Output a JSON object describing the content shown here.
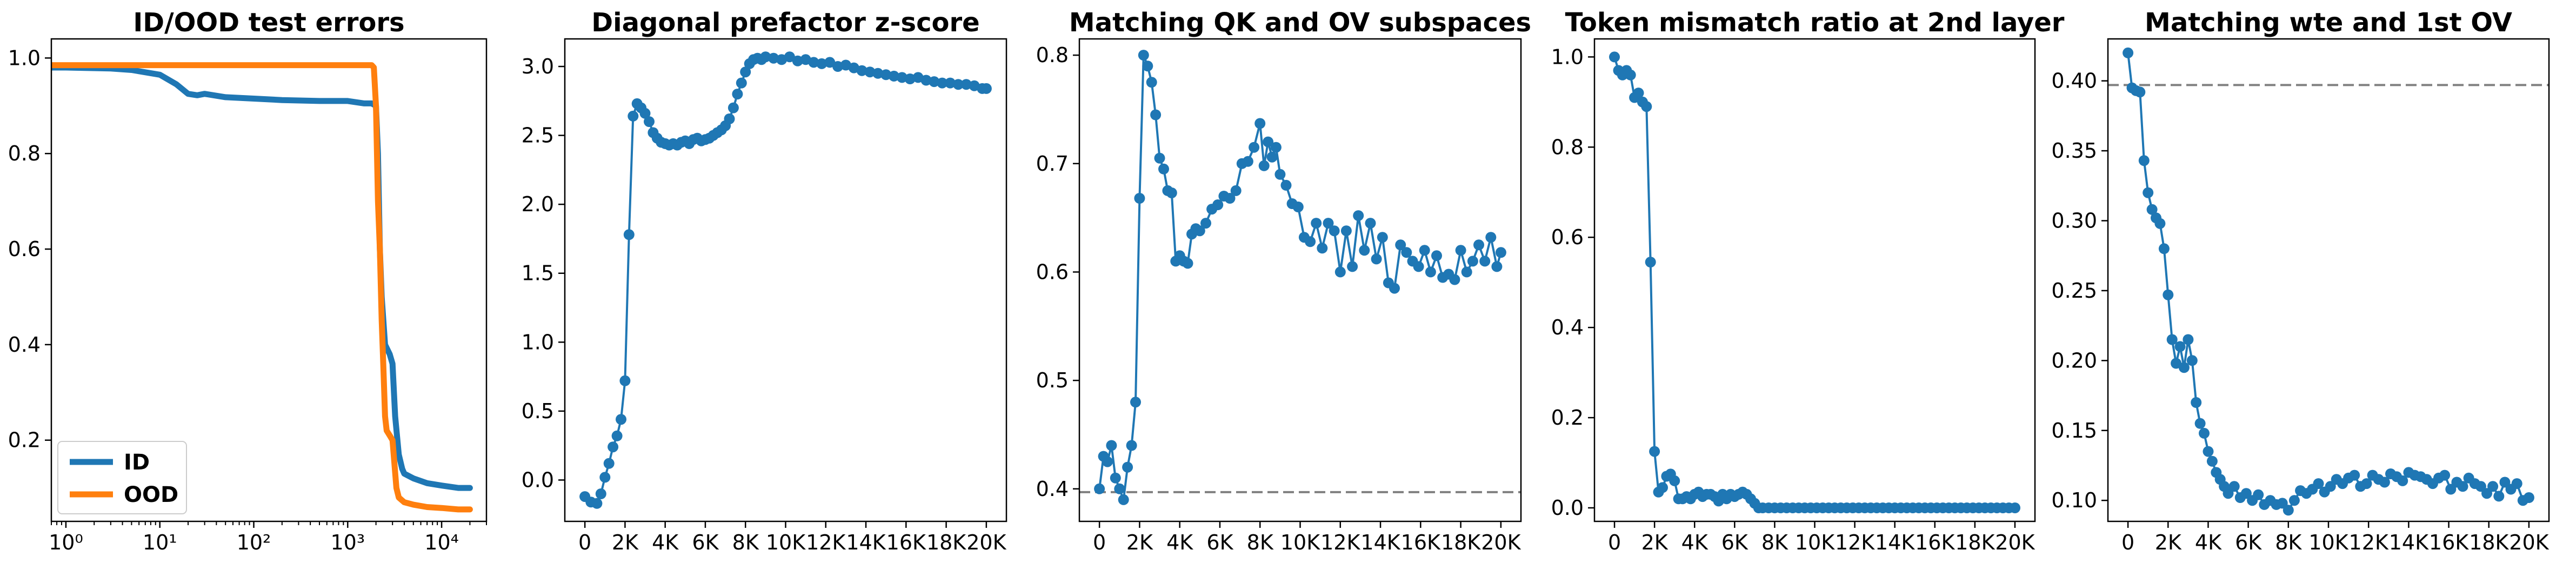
{
  "colors": {
    "blue": "#1f77b4",
    "orange": "#ff7f0e",
    "reference": "#808080"
  },
  "chart_data": [
    {
      "type": "line",
      "title": "ID/OOD test errors",
      "xscale": "log",
      "xlim": [
        0.7,
        30000
      ],
      "ylim": [
        0.03,
        1.04
      ],
      "xticks": [
        1,
        10,
        100,
        1000,
        10000
      ],
      "xtick_labels": [
        "10⁰",
        "10¹",
        "10²",
        "10³",
        "10⁴"
      ],
      "yticks": [
        0.2,
        0.4,
        0.6,
        0.8,
        1.0
      ],
      "ytick_labels": [
        "0.2",
        "0.4",
        "0.6",
        "0.8",
        "1.0"
      ],
      "legend": {
        "position": "lower-left",
        "entries": [
          "ID",
          "OOD"
        ]
      },
      "series": [
        {
          "name": "ID",
          "color": "#1f77b4",
          "x": [
            0.7,
            1,
            3,
            5,
            10,
            15,
            20,
            25,
            30,
            50,
            100,
            200,
            500,
            1000,
            1500,
            1800,
            2000,
            2100,
            2200,
            2300,
            2500,
            2800,
            3000,
            3200,
            3500,
            3800,
            4000,
            5000,
            7000,
            10000,
            15000,
            20000
          ],
          "y": [
            0.98,
            0.98,
            0.978,
            0.975,
            0.965,
            0.945,
            0.925,
            0.922,
            0.925,
            0.918,
            0.915,
            0.912,
            0.91,
            0.91,
            0.905,
            0.905,
            0.9,
            0.8,
            0.6,
            0.5,
            0.4,
            0.38,
            0.36,
            0.25,
            0.17,
            0.14,
            0.13,
            0.12,
            0.11,
            0.105,
            0.1,
            0.1
          ]
        },
        {
          "name": "OOD",
          "color": "#ff7f0e",
          "x": [
            0.7,
            1,
            10,
            100,
            1000,
            1500,
            1800,
            1900,
            2000,
            2100,
            2200,
            2300,
            2400,
            2500,
            2600,
            2800,
            3000,
            3300,
            3500,
            4000,
            5000,
            7000,
            10000,
            15000,
            20000
          ],
          "y": [
            0.985,
            0.985,
            0.985,
            0.985,
            0.985,
            0.985,
            0.985,
            0.98,
            0.9,
            0.7,
            0.6,
            0.45,
            0.35,
            0.25,
            0.22,
            0.21,
            0.2,
            0.1,
            0.08,
            0.07,
            0.065,
            0.06,
            0.058,
            0.055,
            0.055
          ]
        }
      ]
    },
    {
      "type": "line",
      "title": "Diagonal prefactor z-score",
      "xlim": [
        -1000,
        21000
      ],
      "ylim": [
        -0.3,
        3.2
      ],
      "xticks": [
        0,
        2000,
        4000,
        6000,
        8000,
        10000,
        12000,
        14000,
        16000,
        18000,
        20000
      ],
      "xtick_labels": [
        "0",
        "2K",
        "4K",
        "6K",
        "8K",
        "10K",
        "12K",
        "14K",
        "16K",
        "18K",
        "20K"
      ],
      "yticks": [
        0.0,
        0.5,
        1.0,
        1.5,
        2.0,
        2.5,
        3.0
      ],
      "ytick_labels": [
        "0.0",
        "0.5",
        "1.0",
        "1.5",
        "2.0",
        "2.5",
        "3.0"
      ],
      "series": [
        {
          "color": "#1f77b4",
          "markers": true,
          "x": [
            0,
            300,
            600,
            800,
            1000,
            1200,
            1400,
            1600,
            1800,
            2000,
            2200,
            2400,
            2600,
            2800,
            3000,
            3200,
            3400,
            3600,
            3800,
            4000,
            4200,
            4400,
            4600,
            4800,
            5000,
            5200,
            5400,
            5600,
            5800,
            6000,
            6200,
            6400,
            6600,
            6800,
            7000,
            7200,
            7400,
            7600,
            7800,
            8000,
            8200,
            8400,
            8600,
            8800,
            9000,
            9400,
            9800,
            10200,
            10600,
            11000,
            11400,
            11800,
            12200,
            12600,
            13000,
            13400,
            13800,
            14200,
            14600,
            15000,
            15400,
            15800,
            16200,
            16600,
            17000,
            17400,
            17800,
            18200,
            18600,
            19000,
            19400,
            19800,
            20000
          ],
          "y": [
            -0.12,
            -0.16,
            -0.17,
            -0.1,
            0.02,
            0.12,
            0.24,
            0.32,
            0.44,
            0.72,
            1.78,
            2.64,
            2.73,
            2.7,
            2.66,
            2.6,
            2.52,
            2.48,
            2.45,
            2.44,
            2.43,
            2.44,
            2.43,
            2.45,
            2.46,
            2.44,
            2.47,
            2.48,
            2.46,
            2.47,
            2.48,
            2.5,
            2.52,
            2.54,
            2.57,
            2.62,
            2.7,
            2.8,
            2.88,
            2.96,
            3.02,
            3.05,
            3.06,
            3.05,
            3.07,
            3.06,
            3.05,
            3.07,
            3.04,
            3.05,
            3.03,
            3.02,
            3.03,
            3.0,
            3.01,
            2.99,
            2.97,
            2.96,
            2.95,
            2.94,
            2.93,
            2.92,
            2.91,
            2.92,
            2.9,
            2.89,
            2.88,
            2.88,
            2.87,
            2.87,
            2.86,
            2.84,
            2.84
          ]
        }
      ]
    },
    {
      "type": "line",
      "title": "Matching QK and OV subspaces",
      "xlim": [
        -1000,
        21000
      ],
      "ylim": [
        0.37,
        0.815
      ],
      "xticks": [
        0,
        2000,
        4000,
        6000,
        8000,
        10000,
        12000,
        14000,
        16000,
        18000,
        20000
      ],
      "xtick_labels": [
        "0",
        "2K",
        "4K",
        "6K",
        "8K",
        "10K",
        "12K",
        "14K",
        "16K",
        "18K",
        "20K"
      ],
      "yticks": [
        0.4,
        0.5,
        0.6,
        0.7,
        0.8
      ],
      "ytick_labels": [
        "0.4",
        "0.5",
        "0.6",
        "0.7",
        "0.8"
      ],
      "hline": 0.397,
      "series": [
        {
          "color": "#1f77b4",
          "markers": true,
          "x": [
            0,
            200,
            400,
            600,
            800,
            1000,
            1200,
            1400,
            1600,
            1800,
            2000,
            2200,
            2400,
            2600,
            2800,
            3000,
            3200,
            3400,
            3600,
            3800,
            4000,
            4200,
            4400,
            4600,
            4800,
            5000,
            5300,
            5600,
            5900,
            6200,
            6500,
            6800,
            7100,
            7400,
            7700,
            8000,
            8200,
            8400,
            8600,
            8800,
            9000,
            9300,
            9600,
            9900,
            10200,
            10500,
            10800,
            11100,
            11400,
            11700,
            12000,
            12300,
            12600,
            12900,
            13200,
            13500,
            13800,
            14100,
            14400,
            14700,
            15000,
            15300,
            15600,
            15900,
            16200,
            16500,
            16800,
            17100,
            17400,
            17700,
            18000,
            18300,
            18600,
            18900,
            19200,
            19500,
            19800,
            20000
          ],
          "y": [
            0.4,
            0.43,
            0.425,
            0.44,
            0.41,
            0.4,
            0.39,
            0.42,
            0.44,
            0.48,
            0.668,
            0.8,
            0.79,
            0.775,
            0.745,
            0.705,
            0.695,
            0.675,
            0.673,
            0.61,
            0.615,
            0.61,
            0.608,
            0.635,
            0.64,
            0.638,
            0.645,
            0.658,
            0.662,
            0.67,
            0.668,
            0.675,
            0.7,
            0.702,
            0.715,
            0.737,
            0.698,
            0.72,
            0.706,
            0.715,
            0.69,
            0.68,
            0.663,
            0.66,
            0.632,
            0.628,
            0.645,
            0.622,
            0.645,
            0.638,
            0.6,
            0.638,
            0.605,
            0.652,
            0.62,
            0.645,
            0.612,
            0.632,
            0.59,
            0.585,
            0.625,
            0.618,
            0.61,
            0.605,
            0.62,
            0.6,
            0.615,
            0.595,
            0.598,
            0.593,
            0.62,
            0.6,
            0.61,
            0.625,
            0.61,
            0.632,
            0.605,
            0.618
          ]
        }
      ]
    },
    {
      "type": "line",
      "title": "Token mismatch ratio at 2nd layer",
      "xlim": [
        -1000,
        21000
      ],
      "ylim": [
        -0.03,
        1.04
      ],
      "xticks": [
        0,
        2000,
        4000,
        6000,
        8000,
        10000,
        12000,
        14000,
        16000,
        18000,
        20000
      ],
      "xtick_labels": [
        "0",
        "2K",
        "4K",
        "6K",
        "8K",
        "10K",
        "12K",
        "14K",
        "16K",
        "18K",
        "20K"
      ],
      "yticks": [
        0.0,
        0.2,
        0.4,
        0.6,
        0.8,
        1.0
      ],
      "ytick_labels": [
        "0.0",
        "0.2",
        "0.4",
        "0.6",
        "0.8",
        "1.0"
      ],
      "series": [
        {
          "color": "#1f77b4",
          "markers": true,
          "x": [
            0,
            200,
            400,
            600,
            800,
            1000,
            1200,
            1400,
            1600,
            1800,
            2000,
            2200,
            2400,
            2600,
            2800,
            3000,
            3200,
            3400,
            3600,
            3800,
            4000,
            4200,
            4400,
            4600,
            4800,
            5000,
            5200,
            5400,
            5600,
            5800,
            6000,
            6200,
            6400,
            6600,
            6800,
            7000,
            7200,
            7400,
            7700,
            8000,
            8300,
            8600,
            8900,
            9200,
            9500,
            9800,
            10100,
            10400,
            10700,
            11000,
            11300,
            11600,
            11900,
            12200,
            12500,
            12800,
            13100,
            13400,
            13700,
            14000,
            14300,
            14600,
            14900,
            15200,
            15500,
            15800,
            16100,
            16400,
            16700,
            17000,
            17300,
            17600,
            17900,
            18200,
            18500,
            18800,
            19100,
            19400,
            19700,
            20000
          ],
          "y": [
            1.0,
            0.97,
            0.96,
            0.97,
            0.96,
            0.91,
            0.92,
            0.9,
            0.89,
            0.545,
            0.125,
            0.035,
            0.045,
            0.07,
            0.075,
            0.06,
            0.02,
            0.02,
            0.025,
            0.02,
            0.03,
            0.035,
            0.025,
            0.03,
            0.03,
            0.025,
            0.015,
            0.03,
            0.02,
            0.03,
            0.025,
            0.03,
            0.035,
            0.03,
            0.02,
            0.01,
            0.0,
            0.0,
            0.0,
            0.0,
            0.0,
            0.0,
            0.0,
            0.0,
            0.0,
            0.0,
            0.0,
            0.0,
            0.0,
            0.0,
            0.0,
            0.0,
            0.0,
            0.0,
            0.0,
            0.0,
            0.0,
            0.0,
            0.0,
            0.0,
            0.0,
            0.0,
            0.0,
            0.0,
            0.0,
            0.0,
            0.0,
            0.0,
            0.0,
            0.0,
            0.0,
            0.0,
            0.0,
            0.0,
            0.0,
            0.0,
            0.0,
            0.0,
            0.0,
            0.0
          ]
        }
      ]
    },
    {
      "type": "line",
      "title": "Matching wte and 1st OV",
      "xlim": [
        -1000,
        21000
      ],
      "ylim": [
        0.085,
        0.43
      ],
      "xticks": [
        0,
        2000,
        4000,
        6000,
        8000,
        10000,
        12000,
        14000,
        16000,
        18000,
        20000
      ],
      "xtick_labels": [
        "0",
        "2K",
        "4K",
        "6K",
        "8K",
        "10K",
        "12K",
        "14K",
        "16K",
        "18K",
        "20K"
      ],
      "yticks": [
        0.1,
        0.15,
        0.2,
        0.25,
        0.3,
        0.35,
        0.4
      ],
      "ytick_labels": [
        "0.10",
        "0.15",
        "0.20",
        "0.25",
        "0.30",
        "0.35",
        "0.40"
      ],
      "hline": 0.397,
      "series": [
        {
          "color": "#1f77b4",
          "markers": true,
          "x": [
            0,
            200,
            400,
            600,
            800,
            1000,
            1200,
            1400,
            1600,
            1800,
            2000,
            2200,
            2400,
            2600,
            2800,
            3000,
            3200,
            3400,
            3600,
            3800,
            4000,
            4200,
            4400,
            4600,
            4800,
            5000,
            5300,
            5600,
            5900,
            6200,
            6500,
            6800,
            7100,
            7400,
            7700,
            8000,
            8300,
            8600,
            8900,
            9200,
            9500,
            9800,
            10100,
            10400,
            10700,
            11000,
            11300,
            11600,
            11900,
            12200,
            12500,
            12800,
            13100,
            13400,
            13700,
            14000,
            14300,
            14600,
            14900,
            15200,
            15500,
            15800,
            16100,
            16400,
            16700,
            17000,
            17300,
            17600,
            17900,
            18200,
            18500,
            18800,
            19100,
            19400,
            19700,
            20000
          ],
          "y": [
            0.42,
            0.395,
            0.393,
            0.392,
            0.343,
            0.32,
            0.308,
            0.302,
            0.298,
            0.28,
            0.247,
            0.215,
            0.198,
            0.21,
            0.195,
            0.215,
            0.2,
            0.17,
            0.155,
            0.148,
            0.135,
            0.128,
            0.12,
            0.115,
            0.11,
            0.105,
            0.11,
            0.102,
            0.105,
            0.1,
            0.104,
            0.097,
            0.1,
            0.097,
            0.098,
            0.093,
            0.1,
            0.107,
            0.105,
            0.108,
            0.112,
            0.106,
            0.11,
            0.115,
            0.112,
            0.116,
            0.118,
            0.11,
            0.112,
            0.118,
            0.115,
            0.113,
            0.119,
            0.117,
            0.114,
            0.12,
            0.118,
            0.117,
            0.115,
            0.112,
            0.116,
            0.118,
            0.108,
            0.113,
            0.11,
            0.116,
            0.112,
            0.11,
            0.105,
            0.11,
            0.103,
            0.113,
            0.108,
            0.112,
            0.1,
            0.102
          ]
        }
      ]
    }
  ]
}
